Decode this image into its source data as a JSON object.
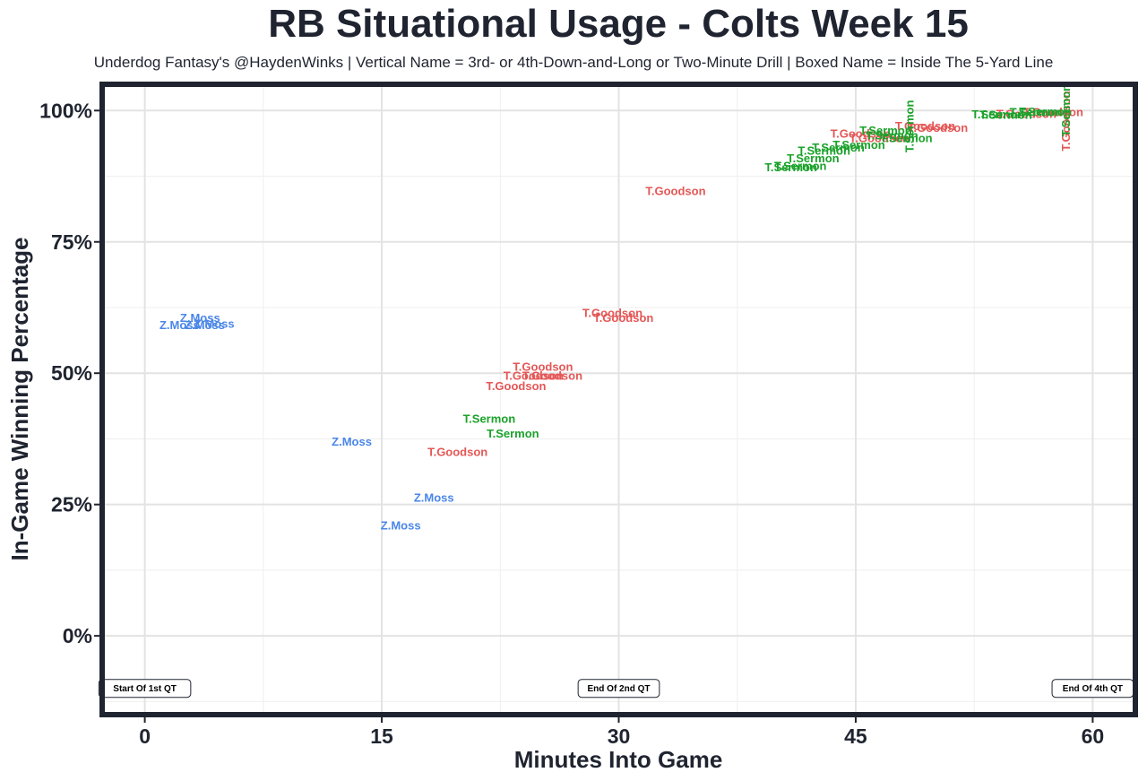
{
  "chart_data": {
    "type": "scatter",
    "title": "RB Situational Usage - Colts Week 15",
    "subtitle": "Underdog Fantasy's @HaydenWinks | Vertical Name = 3rd- or 4th-Down-and-Long or Two-Minute Drill | Boxed Name = Inside The 5-Yard Line",
    "xlabel": "Minutes Into Game",
    "ylabel": "In-Game Winning Percentage",
    "xlim": [
      -2.7,
      62.7
    ],
    "ylim": [
      -15,
      105
    ],
    "x_ticks": [
      0,
      15,
      30,
      45,
      60
    ],
    "x_tick_labels": [
      "0",
      "15",
      "30",
      "45",
      "60"
    ],
    "y_ticks": [
      0,
      25,
      50,
      75,
      100
    ],
    "y_tick_labels": [
      "0%",
      "25%",
      "50%",
      "75%",
      "100%"
    ],
    "grid": true,
    "colors": {
      "Z.Moss": "#4a86e8",
      "T.Goodson": "#e45756",
      "T.Sermon": "#1aa22a"
    },
    "series": [
      {
        "player": "Z.Moss",
        "color": "#4a86e8",
        "points": [
          {
            "x": 3.5,
            "y": 60.5,
            "label": "Z.Moss"
          },
          {
            "x": 4.4,
            "y": 59.4,
            "label": "Z.Moss"
          },
          {
            "x": 2.2,
            "y": 59.2,
            "label": "Z.Moss"
          },
          {
            "x": 3.8,
            "y": 59.2,
            "label": "Z.Moss"
          },
          {
            "x": 13.1,
            "y": 37.0,
            "label": "Z.Moss"
          },
          {
            "x": 18.3,
            "y": 26.3,
            "label": "Z.Moss"
          },
          {
            "x": 16.2,
            "y": 21.0,
            "label": "Z.Moss"
          }
        ]
      },
      {
        "player": "T.Goodson",
        "color": "#e45756",
        "points": [
          {
            "x": 29.6,
            "y": 61.5,
            "label": "T.Goodson"
          },
          {
            "x": 30.3,
            "y": 60.5,
            "label": "T.Goodson"
          },
          {
            "x": 25.2,
            "y": 51.2,
            "label": "T.Goodson"
          },
          {
            "x": 24.6,
            "y": 49.5,
            "label": "T.Goodson"
          },
          {
            "x": 25.8,
            "y": 49.5,
            "label": "T.Goodson"
          },
          {
            "x": 23.5,
            "y": 47.6,
            "label": "T.Goodson"
          },
          {
            "x": 19.8,
            "y": 35.0,
            "label": "T.Goodson"
          },
          {
            "x": 33.6,
            "y": 84.7,
            "label": "T.Goodson"
          },
          {
            "x": 45.3,
            "y": 95.6,
            "label": "T.Goodson"
          },
          {
            "x": 46.5,
            "y": 94.8,
            "label": "T.Goodson"
          },
          {
            "x": 50.2,
            "y": 96.7,
            "label": "T.Goodson"
          },
          {
            "x": 49.4,
            "y": 97.1,
            "label": "T.Goodson"
          },
          {
            "x": 55.8,
            "y": 99.4,
            "label": "T.Goodson"
          },
          {
            "x": 57.5,
            "y": 99.7,
            "label": "T.Goodson"
          },
          {
            "x": 58.3,
            "y": 98.0,
            "label": "T.Goodson",
            "vertical": true
          }
        ]
      },
      {
        "player": "T.Sermon",
        "color": "#1aa22a",
        "points": [
          {
            "x": 21.8,
            "y": 41.3,
            "label": "T.Sermon"
          },
          {
            "x": 23.3,
            "y": 38.5,
            "label": "T.Sermon"
          },
          {
            "x": 42.3,
            "y": 90.9,
            "label": "T.Sermon"
          },
          {
            "x": 41.5,
            "y": 89.5,
            "label": "T.Sermon"
          },
          {
            "x": 40.9,
            "y": 89.2,
            "label": "T.Sermon"
          },
          {
            "x": 43.0,
            "y": 92.4,
            "label": "T.Sermon"
          },
          {
            "x": 43.9,
            "y": 93.0,
            "label": "T.Sermon"
          },
          {
            "x": 45.2,
            "y": 93.5,
            "label": "T.Sermon"
          },
          {
            "x": 47.3,
            "y": 95.3,
            "label": "T.Sermon"
          },
          {
            "x": 48.2,
            "y": 94.8,
            "label": "T.Sermon"
          },
          {
            "x": 46.9,
            "y": 96.2,
            "label": "T.Sermon"
          },
          {
            "x": 48.4,
            "y": 97.0,
            "label": "T.Sermon",
            "vertical": true
          },
          {
            "x": 54.0,
            "y": 99.3,
            "label": "T.Sermon"
          },
          {
            "x": 54.5,
            "y": 99.2,
            "label": "T.Sermon"
          },
          {
            "x": 56.4,
            "y": 99.7,
            "label": "T.Sermon"
          },
          {
            "x": 57.0,
            "y": 99.8,
            "label": "T.Sermon"
          },
          {
            "x": 58.3,
            "y": 100.0,
            "label": "T.Sermon",
            "vertical": true
          }
        ]
      }
    ],
    "annotations": [
      {
        "x": 0,
        "y": -10,
        "text": "Start Of 1st QT"
      },
      {
        "x": 30,
        "y": -10,
        "text": "End Of 2nd QT"
      },
      {
        "x": 60,
        "y": -10,
        "text": "End Of 4th QT"
      }
    ]
  }
}
